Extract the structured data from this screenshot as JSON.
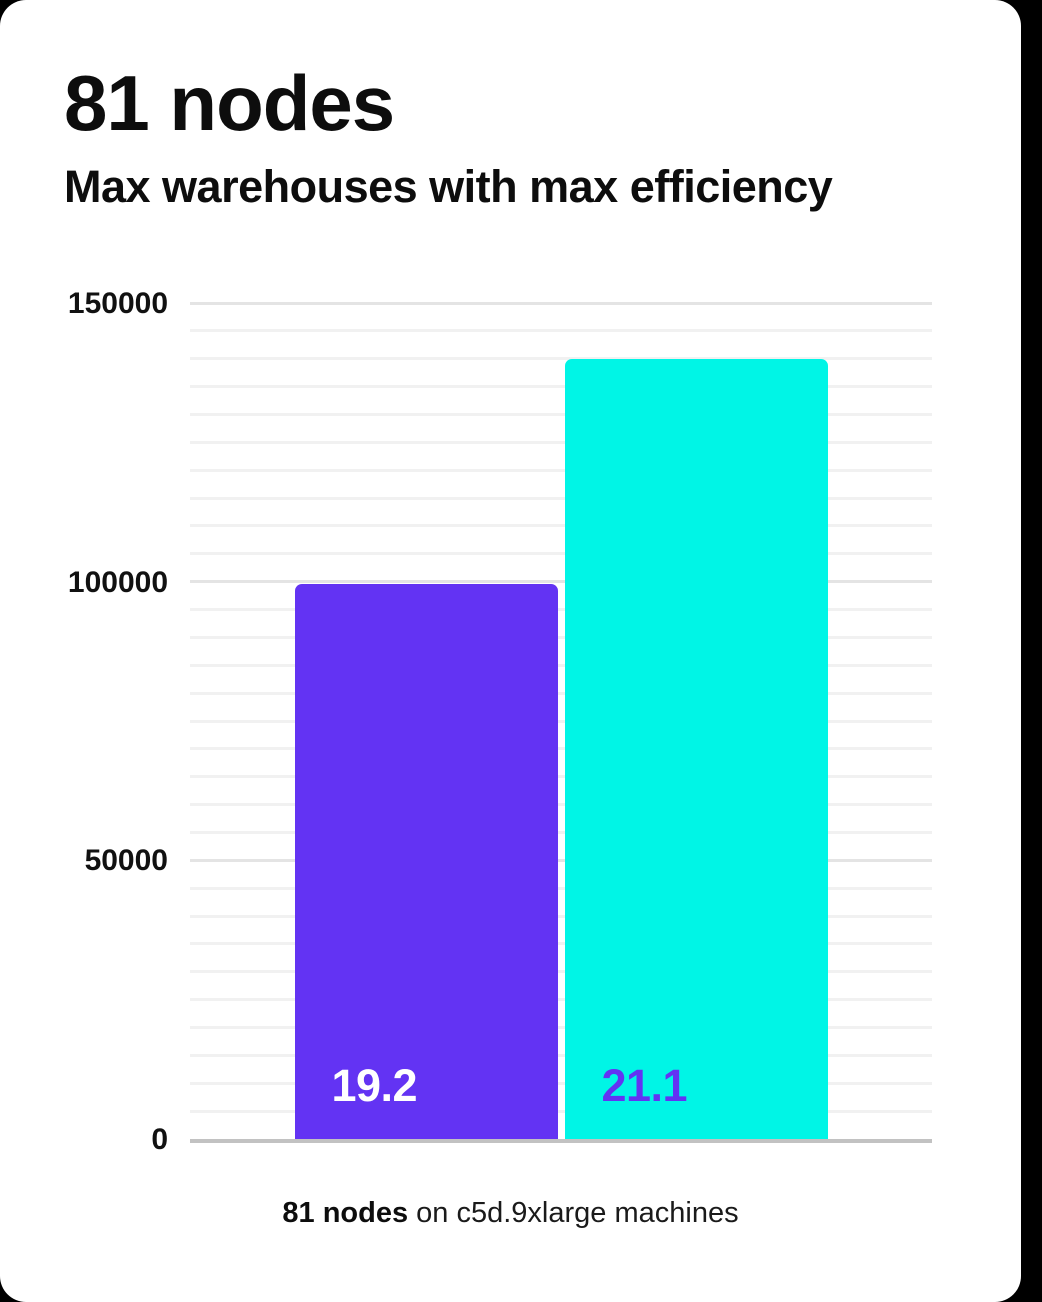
{
  "page": {
    "background_color": "#000000",
    "card_color": "#ffffff"
  },
  "header": {
    "title": "81 nodes",
    "subtitle": "Max warehouses with max efficiency"
  },
  "caption": {
    "bold": "81 nodes",
    "rest": " on c5d.9xlarge machines"
  },
  "chart_data": {
    "type": "bar",
    "title": "81 nodes",
    "subtitle": "Max warehouses with max efficiency",
    "caption": "81 nodes on c5d.9xlarge machines",
    "categories": [
      "19.2",
      "21.1"
    ],
    "values": [
      99500,
      140000
    ],
    "bar_value_labels": [
      "19.2",
      "21.1"
    ],
    "bar_colors": [
      "#6333f3",
      "#00f5e6"
    ],
    "bar_label_colors": [
      "#ffffff",
      "#6333f3"
    ],
    "xlabel": "",
    "ylabel": "",
    "ylim": [
      0,
      150000
    ],
    "ytick_values": [
      0,
      50000,
      100000,
      150000
    ],
    "ytick_labels": [
      "0",
      "50000",
      "100000",
      "150000"
    ],
    "minor_grid_step": 5000,
    "major_grid_step": 50000,
    "grid": true,
    "legend": false,
    "axis_color": "#c2c2c2",
    "major_grid_color": "#e4e4e4",
    "minor_grid_color": "#f1f1f1"
  }
}
